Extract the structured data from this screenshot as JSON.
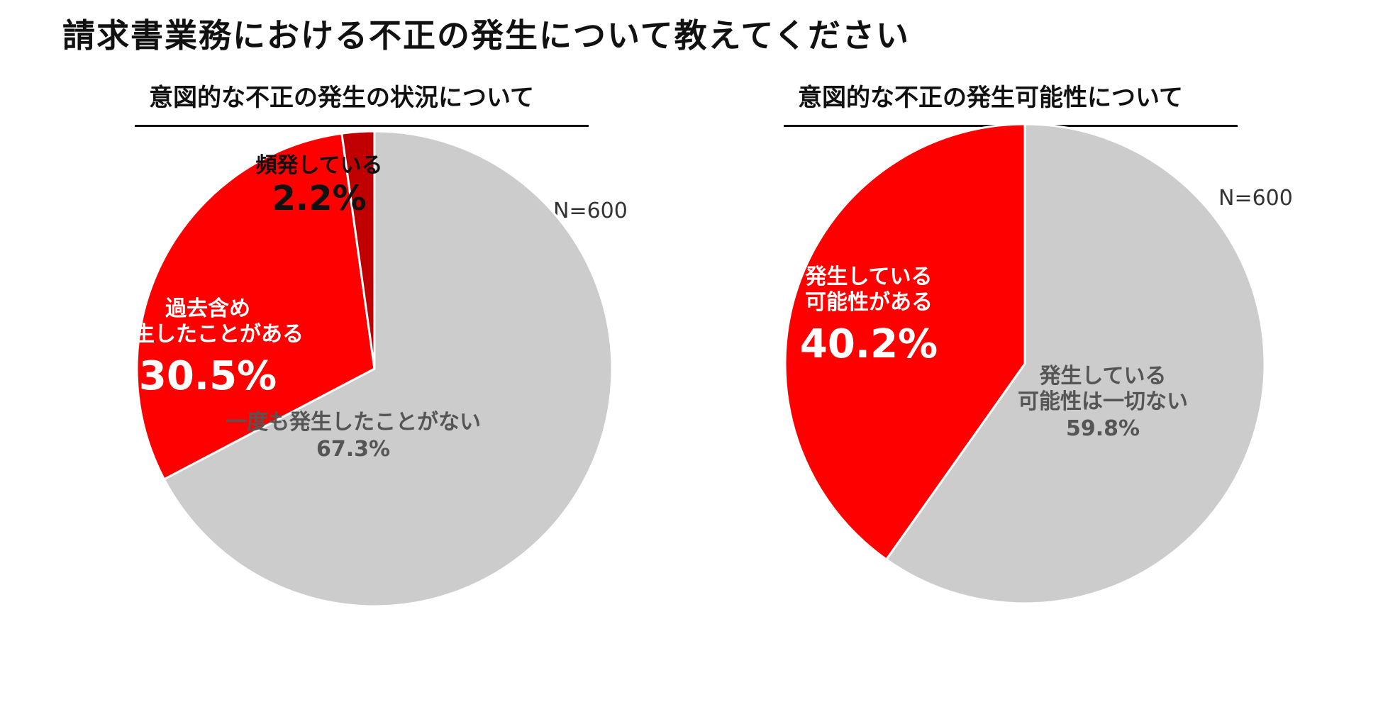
{
  "title": "請求書業務における不正の発生について教えてください",
  "chart_data": [
    {
      "type": "pie",
      "title": "意図的な不正の発生の状況について",
      "n_label": "N=600",
      "slices": [
        {
          "label": "一度も発生したことがない",
          "value": 67.3,
          "pct_text": "67.3%",
          "color": "#cccccc",
          "label_color": "#555555"
        },
        {
          "label": "過去含め 発生したことがある",
          "label_lines": [
            "過去含め",
            "発生したことがある"
          ],
          "value": 30.5,
          "pct_text": "30.5%",
          "color": "#ff0000",
          "label_color": "#ffffff"
        },
        {
          "label": "頻発している",
          "value": 2.2,
          "pct_text": "2.2%",
          "color": "#c00000",
          "label_color": "#111111"
        }
      ]
    },
    {
      "type": "pie",
      "title": "意図的な不正の発生可能性について",
      "n_label": "N=600",
      "slices": [
        {
          "label": "発生している 可能性は一切ない",
          "label_lines": [
            "発生している",
            "可能性は一切ない"
          ],
          "value": 59.8,
          "pct_text": "59.8%",
          "color": "#cccccc",
          "label_color": "#555555"
        },
        {
          "label": "発生している 可能性がある",
          "label_lines": [
            "発生している",
            "可能性がある"
          ],
          "value": 40.2,
          "pct_text": "40.2%",
          "color": "#ff0000",
          "label_color": "#ffffff"
        }
      ]
    }
  ]
}
